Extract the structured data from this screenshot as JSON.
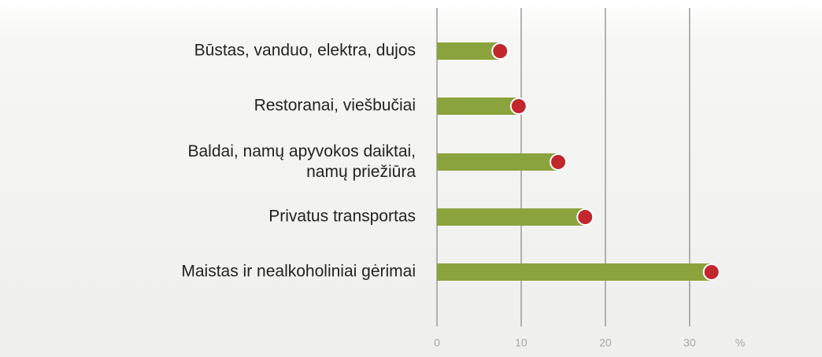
{
  "chart_data": {
    "type": "bar",
    "orientation": "horizontal",
    "categories": [
      "Būstas, vanduo, elektra, dujos",
      "Restoranai, viešbučiai",
      "Baldai, namų apyvokos daiktai,\nnamų priežiūra",
      "Privatus transportas",
      "Maistas ir nealkoholiniai gėrimai"
    ],
    "values": [
      7.5,
      9.7,
      14.4,
      17.6,
      32.6
    ],
    "color": "#8ba33c",
    "marker_color": "#c1272d",
    "xlim": [
      0,
      36
    ],
    "xticks": [
      0,
      10,
      20,
      30
    ],
    "xlabel": "%",
    "grid": true
  }
}
